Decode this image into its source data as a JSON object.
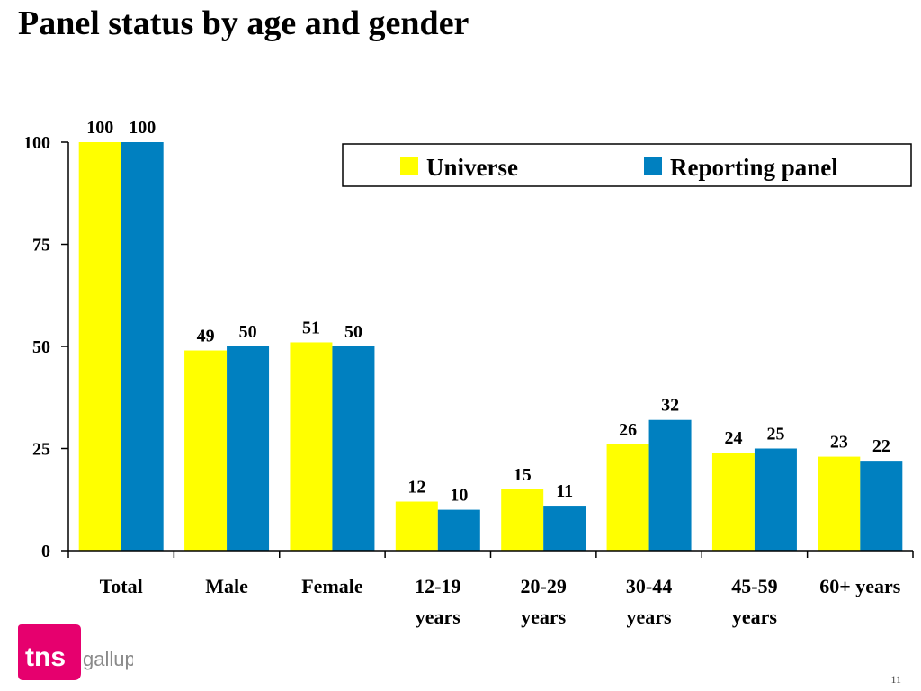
{
  "slide": {
    "title": "Panel status by age and gender",
    "page_number": "11",
    "logo": {
      "name": "tns gallup",
      "brand_color": "#e6006e",
      "text_color": "#8a8a8a"
    }
  },
  "chart_data": {
    "type": "bar",
    "title": "Panel status by age and gender",
    "categories": [
      [
        "Total"
      ],
      [
        "Male"
      ],
      [
        "Female"
      ],
      [
        "12-19",
        "years"
      ],
      [
        "20-29",
        "years"
      ],
      [
        "30-44",
        "years"
      ],
      [
        "45-59",
        "years"
      ],
      [
        "60+ years"
      ]
    ],
    "series": [
      {
        "name": "Universe",
        "color": "#ffff00",
        "values": [
          100,
          49,
          51,
          12,
          15,
          26,
          24,
          23
        ]
      },
      {
        "name": "Reporting panel",
        "color": "#0080c0",
        "values": [
          100,
          50,
          50,
          10,
          11,
          32,
          25,
          22
        ]
      }
    ],
    "ylim": [
      0,
      100
    ],
    "yticks": [
      0,
      25,
      50,
      75,
      100
    ],
    "grid": false,
    "legend": "top-right",
    "xlabel": "",
    "ylabel": ""
  }
}
